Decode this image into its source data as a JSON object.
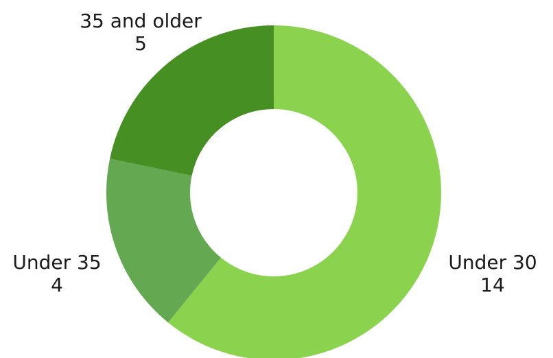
{
  "chart_data": {
    "type": "pie",
    "variant": "donut",
    "categories": [
      "Under 30",
      "Under 35",
      "35 and older"
    ],
    "values": [
      14,
      4,
      5
    ],
    "colors": [
      "#8bd34f",
      "#64a852",
      "#458f23"
    ],
    "title": "",
    "legend": "none",
    "labels": [
      {
        "name": "Under 30",
        "value": "14"
      },
      {
        "name": "Under 35",
        "value": "4"
      },
      {
        "name": "35 and older",
        "value": "5"
      }
    ]
  }
}
